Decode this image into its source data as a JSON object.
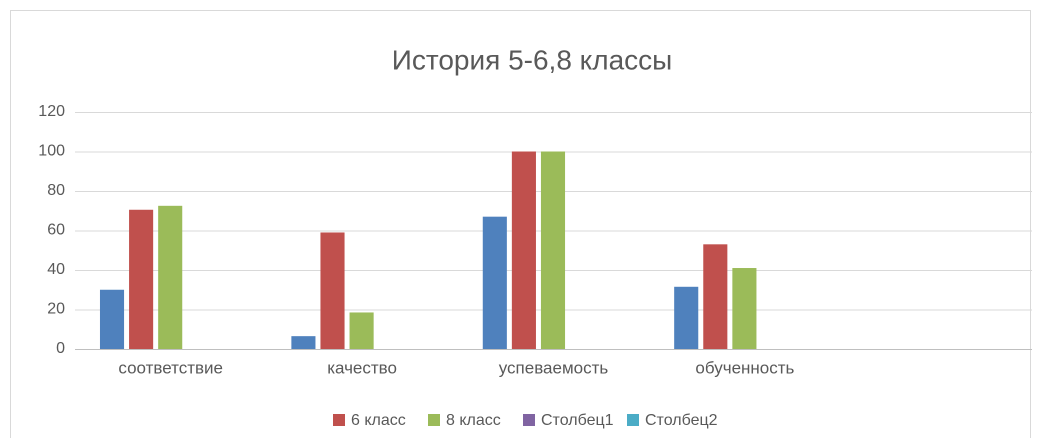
{
  "chart_data": {
    "type": "bar",
    "title": "История 5-6,8 классы",
    "categories": [
      "соответствие",
      "качество",
      "успеваемость",
      "обученность",
      null
    ],
    "series": [
      {
        "color": "#4f81bd",
        "values": [
          30,
          6.5,
          67,
          31.5,
          null
        ]
      },
      {
        "name": "6 класс",
        "color": "#c0504d",
        "values": [
          70.5,
          59,
          100,
          53,
          null
        ]
      },
      {
        "name": "8 класс",
        "color": "#9bbb59",
        "values": [
          72.5,
          18.5,
          100,
          41,
          null
        ]
      },
      {
        "name": "Столбец1",
        "color": "#8064a2",
        "values": [
          null,
          null,
          null,
          null,
          null
        ]
      },
      {
        "name": "Столбец2",
        "color": "#4bacc6",
        "values": [
          null,
          null,
          null,
          null,
          null
        ]
      }
    ],
    "ylim": [
      0,
      120
    ],
    "yticks": [
      0,
      20,
      40,
      60,
      80,
      100,
      120
    ],
    "grid": true,
    "legend": "bottom"
  }
}
